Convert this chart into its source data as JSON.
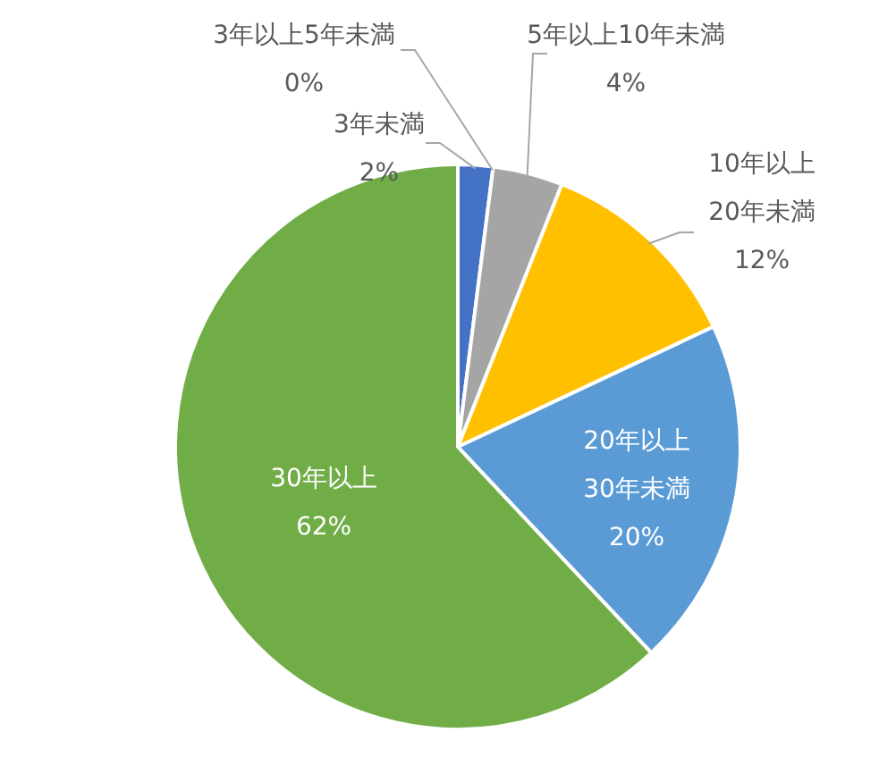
{
  "chart_data": {
    "type": "pie",
    "categories": [
      "3年未満",
      "3年以上5年未満",
      "5年以上10年未満",
      "10年以上\n20年未満",
      "20年以上\n30年未満",
      "30年以上"
    ],
    "values": [
      2,
      0,
      4,
      12,
      20,
      62
    ],
    "colors": [
      "#4472c4",
      "#ed7d31",
      "#a5a5a5",
      "#ffc000",
      "#5b9bd5",
      "#70ad47"
    ],
    "value_labels": [
      "2%",
      "0%",
      "4%",
      "12%",
      "20%",
      "62%"
    ]
  }
}
